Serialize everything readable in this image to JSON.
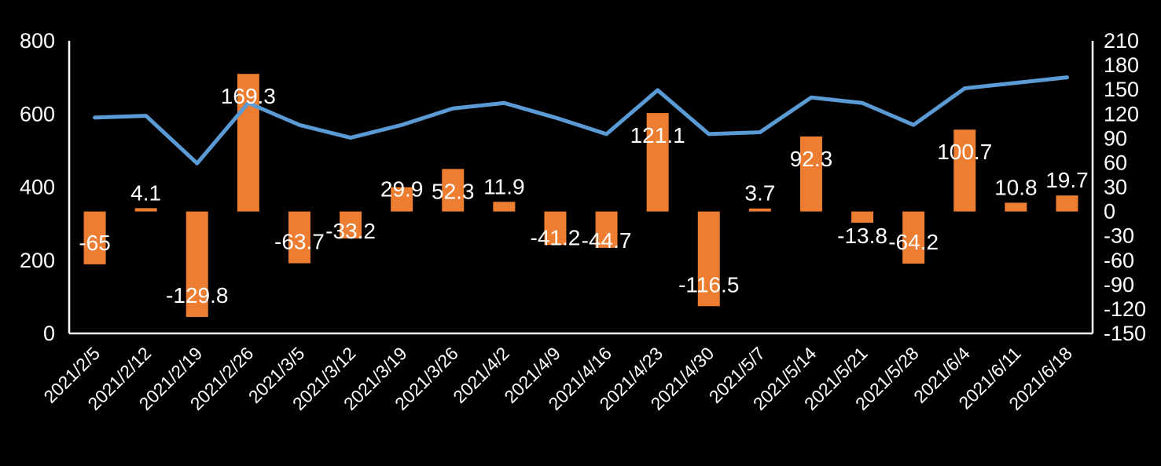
{
  "colors": {
    "background": "#000000",
    "text": "#FFFFFF",
    "axis_line": "#FFFFFF",
    "bar": "#ED7D31",
    "line": "#5B9BD5"
  },
  "chart_data": {
    "type": "combo-bar-line",
    "title": "",
    "legend": "none",
    "grid": false,
    "categories": [
      "2021/2/5",
      "2021/2/12",
      "2021/2/19",
      "2021/2/26",
      "2021/3/5",
      "2021/3/12",
      "2021/3/19",
      "2021/3/26",
      "2021/4/2",
      "2021/4/9",
      "2021/4/16",
      "2021/4/23",
      "2021/4/30",
      "2021/5/7",
      "2021/5/14",
      "2021/5/21",
      "2021/5/28",
      "2021/6/4",
      "2021/6/11",
      "2021/6/18"
    ],
    "series": [
      {
        "name": "bar-series",
        "type": "bar",
        "axis": "right",
        "color": "#ED7D31",
        "values": [
          -65,
          4.1,
          -129.8,
          169.3,
          -63.7,
          -33.2,
          29.9,
          52.3,
          11.9,
          -41.2,
          -44.7,
          121.1,
          -116.5,
          3.7,
          92.3,
          -13.8,
          -64.2,
          100.7,
          10.8,
          19.7
        ],
        "labels": [
          "-65",
          "4.1",
          "-129.8",
          "169.3",
          "-63.7",
          "-33.2",
          "29.9",
          "52.3",
          "11.9",
          "-41.2",
          "-44.7",
          "121.1",
          "-116.5",
          "3.7",
          "92.3",
          "-13.8",
          "-64.2",
          "100.7",
          "10.8",
          "19.7"
        ]
      },
      {
        "name": "line-series",
        "type": "line",
        "axis": "left",
        "color": "#5B9BD5",
        "values": [
          590,
          595,
          465,
          630,
          570,
          535,
          570,
          615,
          630,
          590,
          545,
          665,
          545,
          550,
          645,
          630,
          570,
          670,
          685,
          700
        ]
      }
    ],
    "left_axis": {
      "min": 0,
      "max": 800,
      "ticks": [
        "0",
        "200",
        "400",
        "600",
        "800"
      ]
    },
    "right_axis": {
      "min": -150,
      "max": 210,
      "ticks": [
        "-150",
        "-120",
        "-90",
        "-60",
        "-30",
        "0",
        "30",
        "60",
        "90",
        "120",
        "150",
        "180",
        "210"
      ]
    }
  }
}
